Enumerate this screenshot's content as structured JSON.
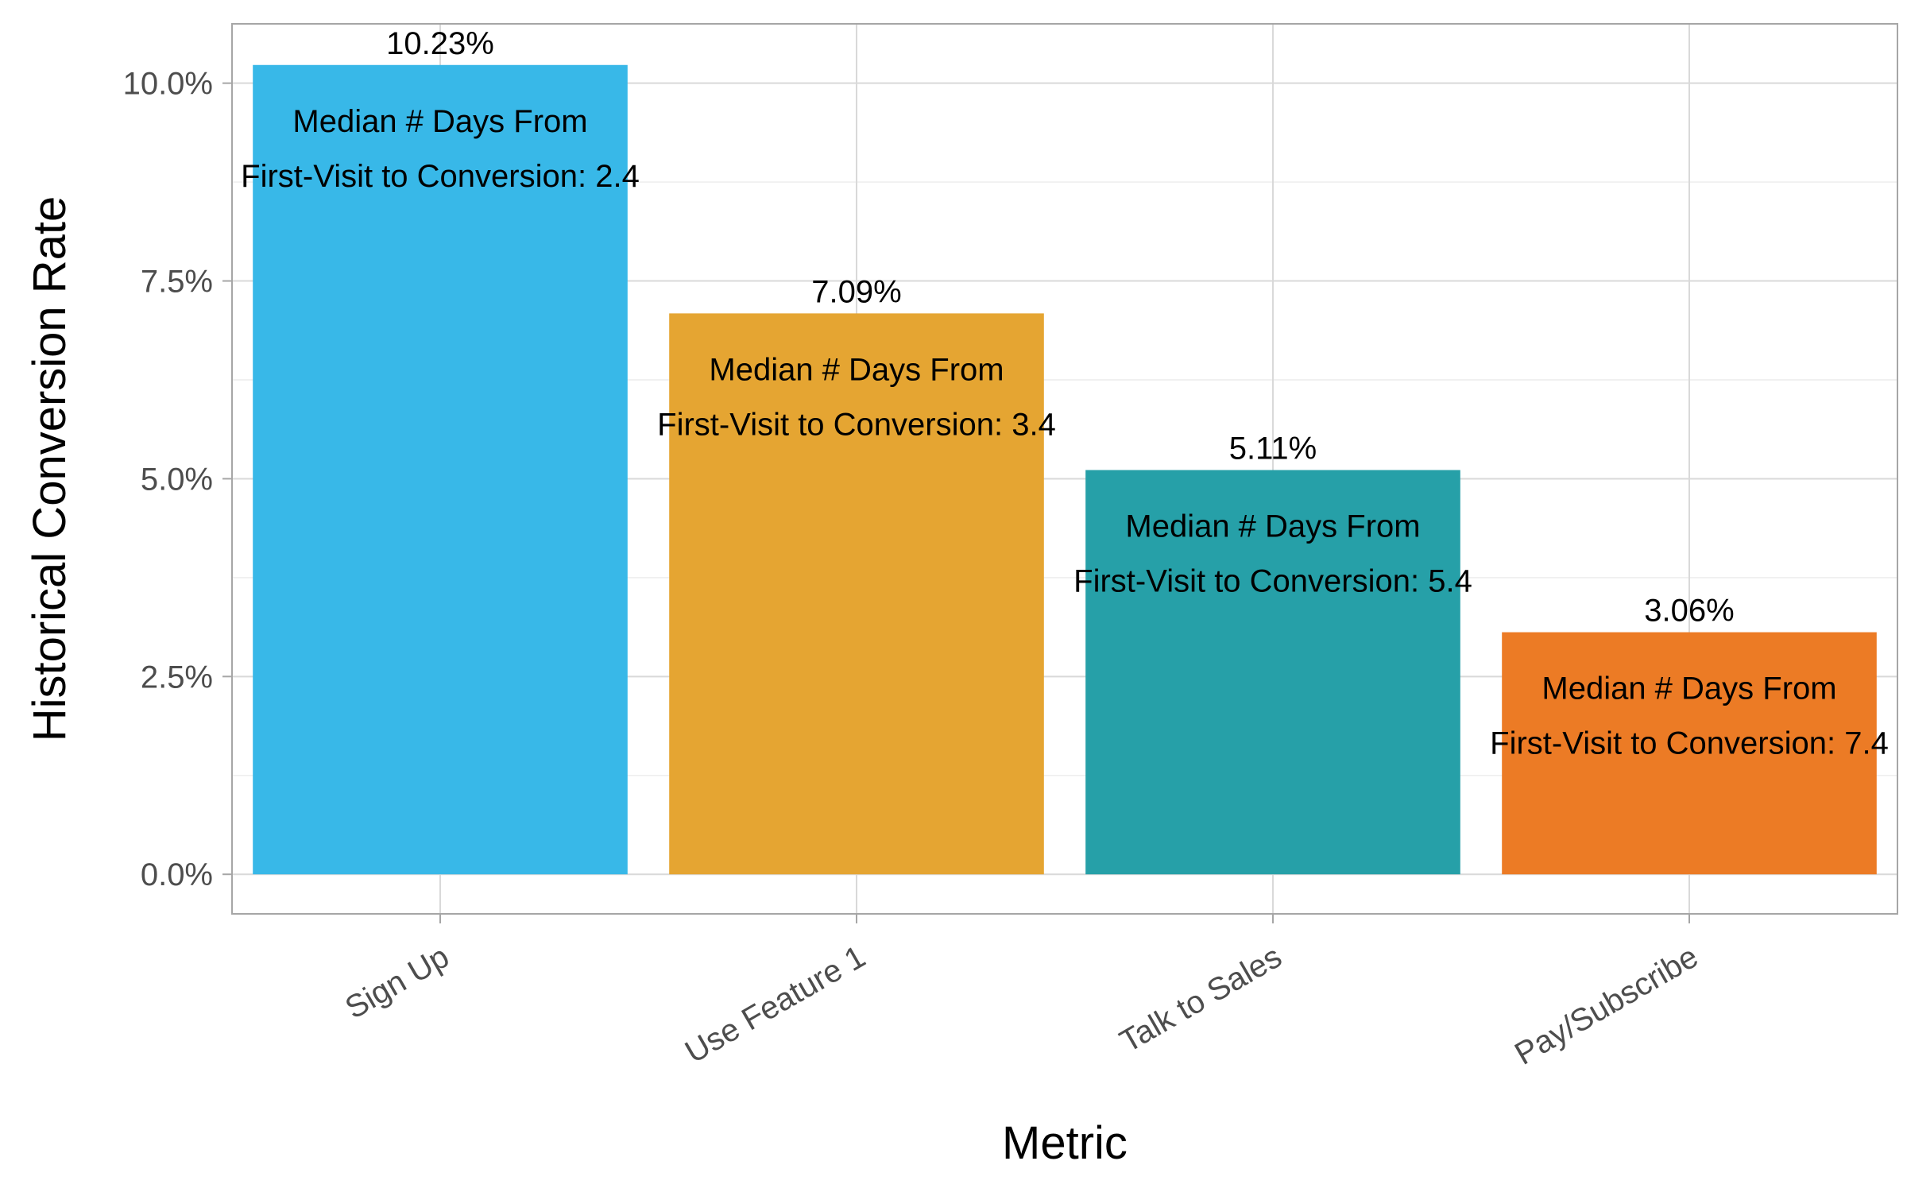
{
  "chart_data": {
    "type": "bar",
    "title": "",
    "xlabel": "Metric",
    "ylabel": "Historical Conversion Rate",
    "categories": [
      "Sign Up",
      "Use Feature 1",
      "Talk to Sales",
      "Pay/Subscribe"
    ],
    "values": [
      10.23,
      7.09,
      5.11,
      3.06
    ],
    "value_labels": [
      "10.23%",
      "7.09%",
      "5.11%",
      "3.06%"
    ],
    "annotation_line1": [
      "Median # Days From",
      "Median # Days From",
      "Median # Days From",
      "Median # Days From"
    ],
    "annotation_line2": [
      "First-Visit to Conversion: 2.4",
      "First-Visit to Conversion: 3.4",
      "First-Visit to Conversion: 5.4",
      "First-Visit to Conversion: 7.4"
    ],
    "median_days": [
      2.4,
      3.4,
      5.4,
      7.4
    ],
    "colors": [
      "#38b8e8",
      "#e5a532",
      "#26a0a8",
      "#ec7b25"
    ],
    "yticks": [
      0,
      2.5,
      5,
      7.5,
      10
    ],
    "ytick_labels": [
      "0.0%",
      "2.5%",
      "5.0%",
      "7.5%",
      "10.0%"
    ],
    "ylim": [
      -0.5,
      10.75
    ],
    "grid": true,
    "legend": "none"
  }
}
